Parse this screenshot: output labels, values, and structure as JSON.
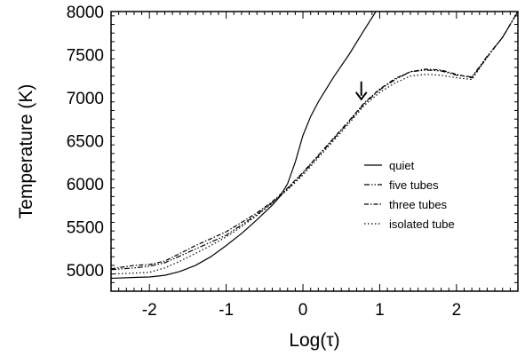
{
  "chart_data": {
    "type": "line",
    "title": "",
    "xlabel": "Log(τ)",
    "ylabel": "Temperature (K)",
    "xlim": [
      -2.5,
      2.8
    ],
    "ylim": [
      4750,
      8000
    ],
    "x_ticks": [
      "-2",
      "-1",
      "0",
      "1",
      "2"
    ],
    "x_tick_values": [
      -2,
      -1,
      0,
      1,
      2
    ],
    "y_ticks": [
      "5000",
      "5500",
      "6000",
      "6500",
      "7000",
      "7500",
      "8000"
    ],
    "y_tick_values": [
      5000,
      5500,
      6000,
      6500,
      7000,
      7500,
      8000
    ],
    "grid": false,
    "legend_position": "center-right",
    "annotation": {
      "type": "arrow",
      "x": 0.76,
      "y": 6960
    },
    "series": [
      {
        "name": "quiet",
        "dash": "solid",
        "x": [
          -2.5,
          -2.2,
          -2.0,
          -1.8,
          -1.6,
          -1.4,
          -1.2,
          -1.0,
          -0.8,
          -0.6,
          -0.4,
          -0.3,
          -0.2,
          -0.1,
          0.0,
          0.1,
          0.2,
          0.4,
          0.6,
          0.8,
          0.95
        ],
        "y": [
          4900,
          4910,
          4915,
          4935,
          4980,
          5050,
          5150,
          5280,
          5420,
          5580,
          5750,
          5850,
          6000,
          6250,
          6560,
          6780,
          6950,
          7240,
          7500,
          7790,
          8000
        ]
      },
      {
        "name": "five tubes",
        "dash": "dashdotdot",
        "x": [
          -2.5,
          -2.2,
          -2.0,
          -1.8,
          -1.6,
          -1.4,
          -1.2,
          -1.0,
          -0.8,
          -0.6,
          -0.4,
          -0.2,
          0.0,
          0.2,
          0.4,
          0.6,
          0.8,
          1.0,
          1.2,
          1.4,
          1.6,
          1.8,
          2.0,
          2.2,
          2.4,
          2.6,
          2.8
        ],
        "y": [
          5000,
          5020,
          5040,
          5080,
          5160,
          5240,
          5320,
          5400,
          5520,
          5640,
          5780,
          5940,
          6120,
          6320,
          6520,
          6720,
          6930,
          7090,
          7210,
          7300,
          7320,
          7310,
          7260,
          7240,
          7480,
          7700,
          8000
        ]
      },
      {
        "name": "three tubes",
        "dash": "dashdot",
        "x": [
          -2.5,
          -2.2,
          -2.0,
          -1.8,
          -1.6,
          -1.4,
          -1.2,
          -1.0,
          -0.8,
          -0.6,
          -0.4,
          -0.2,
          0.0,
          0.2,
          0.4,
          0.6,
          0.8,
          1.0,
          1.2,
          1.4,
          1.6,
          1.8,
          2.0,
          2.2,
          2.4,
          2.6,
          2.8
        ],
        "y": [
          5010,
          5050,
          5060,
          5100,
          5190,
          5280,
          5360,
          5440,
          5550,
          5660,
          5790,
          5950,
          6130,
          6330,
          6530,
          6730,
          6940,
          7100,
          7220,
          7300,
          7330,
          7320,
          7270,
          7230,
          7470,
          7700,
          8000
        ]
      },
      {
        "name": "isolated tube",
        "dash": "dotted",
        "x": [
          -2.5,
          -2.2,
          -2.0,
          -1.8,
          -1.6,
          -1.4,
          -1.2,
          -1.0,
          -0.8,
          -0.6,
          -0.4,
          -0.2,
          0.0,
          0.2,
          0.4,
          0.6,
          0.8,
          1.0,
          1.2,
          1.4,
          1.6,
          1.8,
          2.0,
          2.2,
          2.4,
          2.6,
          2.8
        ],
        "y": [
          4950,
          4960,
          4970,
          5020,
          5100,
          5190,
          5280,
          5380,
          5500,
          5630,
          5770,
          5930,
          6100,
          6300,
          6500,
          6700,
          6910,
          7060,
          7170,
          7250,
          7270,
          7260,
          7230,
          7210,
          7470,
          7700,
          8000
        ]
      }
    ]
  }
}
